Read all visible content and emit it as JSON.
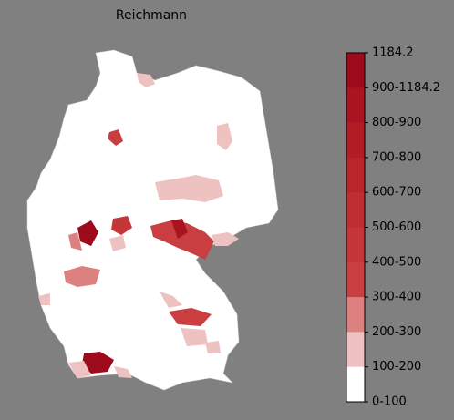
{
  "title": "Reichmann",
  "colorbar": {
    "labels": [
      "1184.2",
      "900-1184.2",
      "800-900",
      "700-800",
      "600-700",
      "500-600",
      "400-500",
      "300-400",
      "200-300",
      "100-200",
      "0-100"
    ],
    "colors": [
      "#9c0a1c",
      "#a8141f",
      "#b11d25",
      "#b8262b",
      "#bf2e31",
      "#c43638",
      "#c93e40",
      "#dc8080",
      "#efc2c2",
      "#ffffff"
    ]
  }
}
